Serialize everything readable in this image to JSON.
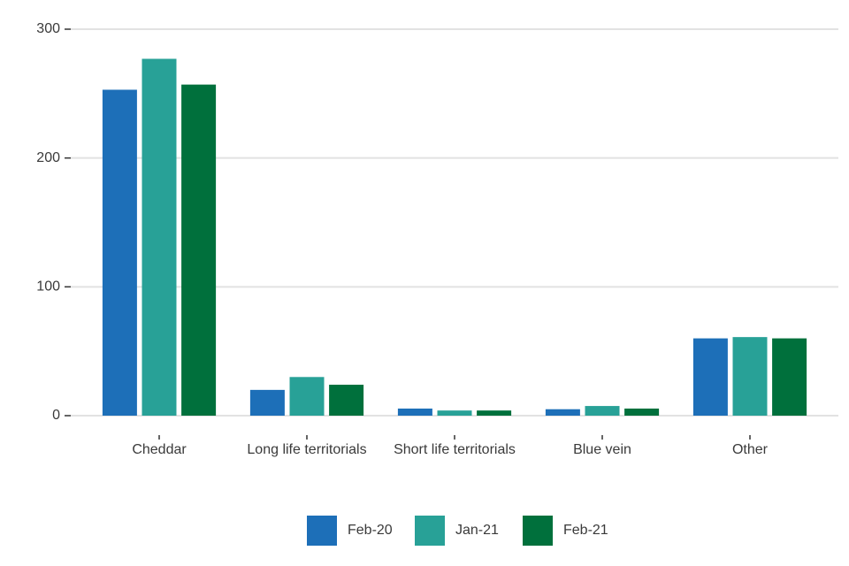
{
  "chart_data": {
    "type": "bar",
    "categories": [
      "Cheddar",
      "Long life territorials",
      "Short life territorials",
      "Blue vein",
      "Other"
    ],
    "series": [
      {
        "name": "Feb-20",
        "color": "#1d6fb8",
        "values": [
          253,
          20,
          5.5,
          5,
          60
        ]
      },
      {
        "name": "Jan-21",
        "color": "#28a197",
        "values": [
          277,
          30,
          4,
          7.5,
          61
        ]
      },
      {
        "name": "Feb-21",
        "color": "#00703c",
        "values": [
          257,
          24,
          4,
          5.5,
          60
        ]
      }
    ],
    "ylim": [
      0,
      300
    ],
    "yticks": [
      0,
      100,
      200,
      300
    ],
    "grid": true,
    "legend": "bottom"
  }
}
